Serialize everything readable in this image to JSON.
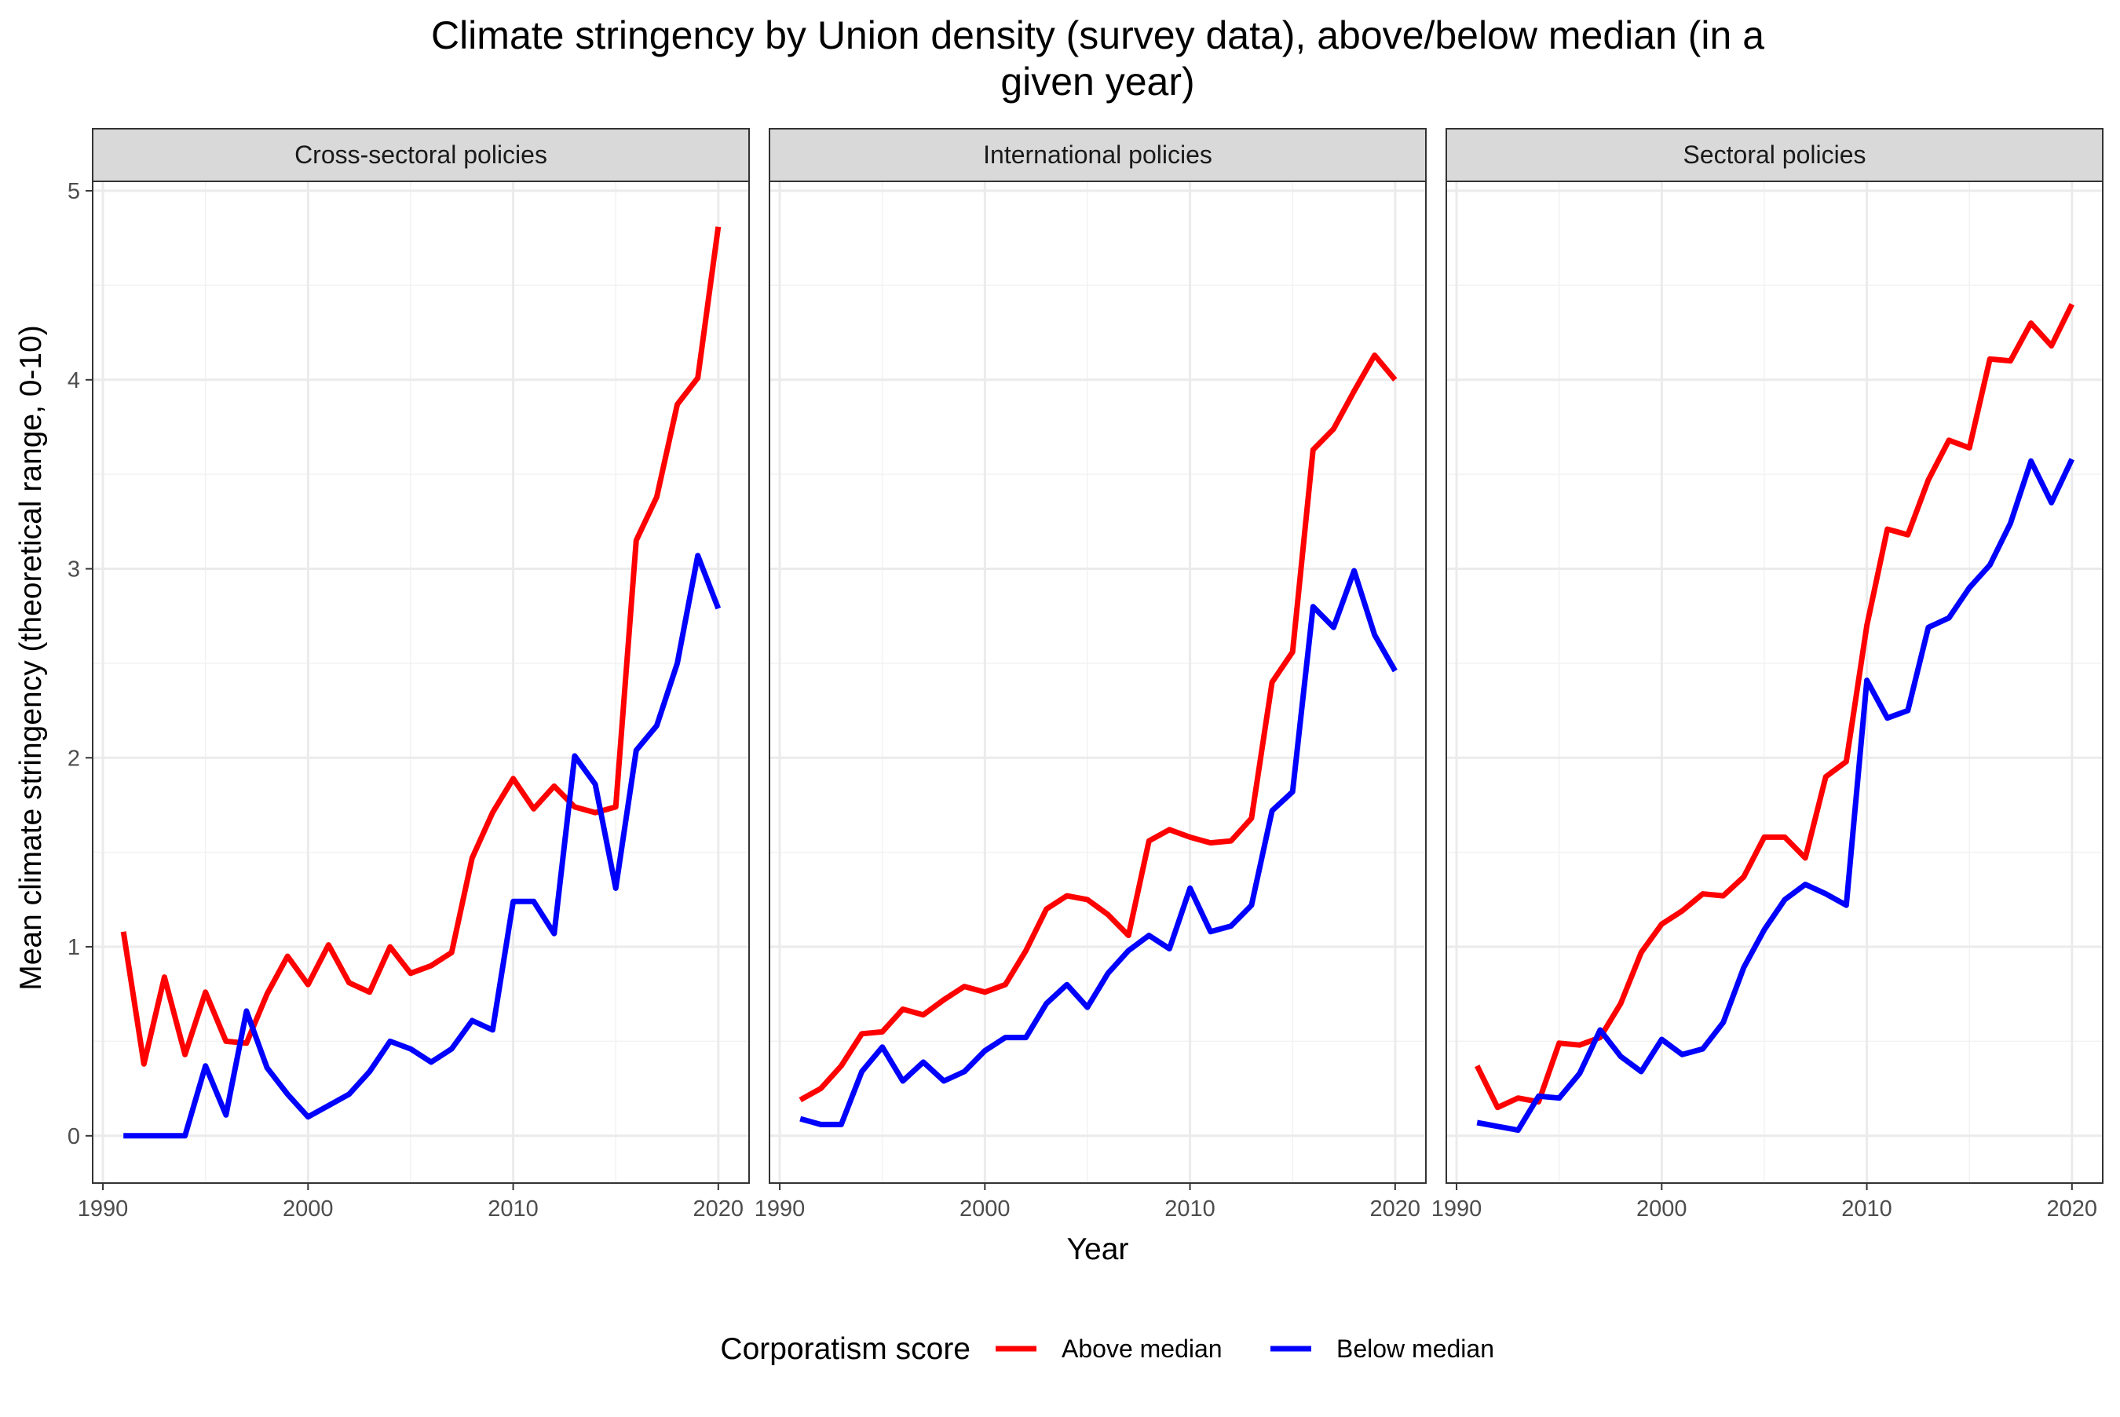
{
  "chart_data": {
    "type": "line",
    "title": "Climate stringency by Union density (survey data), above/below median (in a given year)",
    "title_lines": [
      "Climate stringency by Union density (survey data), above/below median (in a",
      "given year)"
    ],
    "xlabel": "Year",
    "ylabel": "Mean climate stringency (theoretical range, 0-10)",
    "xlim": [
      1989.5,
      2021.5
    ],
    "ylim": [
      -0.25,
      5.05
    ],
    "x_ticks": [
      1990,
      2000,
      2010,
      2020
    ],
    "y_ticks": [
      0,
      1,
      2,
      3,
      4,
      5
    ],
    "grid": true,
    "legend": {
      "title": "Corporatism score",
      "position": "bottom",
      "entries": [
        "Above median",
        "Below median"
      ]
    },
    "series_colors": {
      "Above median": "#ff0000",
      "Below median": "#0000ff"
    },
    "panel_strip_color": "#d9d9d9",
    "x": [
      1991,
      1992,
      1993,
      1994,
      1995,
      1996,
      1997,
      1998,
      1999,
      2000,
      2001,
      2002,
      2003,
      2004,
      2005,
      2006,
      2007,
      2008,
      2009,
      2010,
      2011,
      2012,
      2013,
      2014,
      2015,
      2016,
      2017,
      2018,
      2019,
      2020
    ],
    "panels": [
      {
        "name": "Cross-sectoral policies",
        "series": [
          {
            "name": "Above median",
            "values": [
              1.08,
              0.38,
              0.84,
              0.43,
              0.76,
              0.5,
              0.49,
              0.75,
              0.95,
              0.8,
              1.01,
              0.81,
              0.76,
              1.0,
              0.86,
              0.9,
              0.97,
              1.47,
              1.71,
              1.89,
              1.73,
              1.85,
              1.74,
              1.71,
              1.74,
              3.15,
              3.38,
              3.87,
              4.01,
              4.81
            ]
          },
          {
            "name": "Below median",
            "values": [
              0.0,
              0.0,
              0.0,
              0.0,
              0.37,
              0.11,
              0.66,
              0.36,
              0.22,
              0.1,
              0.16,
              0.22,
              0.34,
              0.5,
              0.46,
              0.39,
              0.46,
              0.61,
              0.56,
              1.24,
              1.24,
              1.07,
              2.01,
              1.86,
              1.31,
              2.04,
              2.17,
              2.5,
              3.07,
              2.79
            ]
          }
        ]
      },
      {
        "name": "International policies",
        "series": [
          {
            "name": "Above median",
            "values": [
              0.19,
              0.25,
              0.37,
              0.54,
              0.55,
              0.67,
              0.64,
              0.72,
              0.79,
              0.76,
              0.8,
              0.98,
              1.2,
              1.27,
              1.25,
              1.17,
              1.06,
              1.56,
              1.62,
              1.58,
              1.55,
              1.56,
              1.68,
              2.4,
              2.56,
              3.63,
              3.74,
              3.94,
              4.13,
              4.0
            ]
          },
          {
            "name": "Below median",
            "values": [
              0.09,
              0.06,
              0.06,
              0.34,
              0.47,
              0.29,
              0.39,
              0.29,
              0.34,
              0.45,
              0.52,
              0.52,
              0.7,
              0.8,
              0.68,
              0.86,
              0.98,
              1.06,
              0.99,
              1.31,
              1.08,
              1.11,
              1.22,
              1.72,
              1.82,
              2.8,
              2.69,
              2.99,
              2.65,
              2.46
            ]
          }
        ]
      },
      {
        "name": "Sectoral policies",
        "series": [
          {
            "name": "Above median",
            "values": [
              0.37,
              0.15,
              0.2,
              0.18,
              0.49,
              0.48,
              0.52,
              0.7,
              0.97,
              1.12,
              1.19,
              1.28,
              1.27,
              1.37,
              1.58,
              1.58,
              1.47,
              1.9,
              1.98,
              2.7,
              3.21,
              3.18,
              3.47,
              3.68,
              3.64,
              4.11,
              4.1,
              4.3,
              4.18,
              4.4
            ]
          },
          {
            "name": "Below median",
            "values": [
              0.07,
              null,
              0.03,
              0.21,
              0.2,
              0.33,
              0.56,
              0.42,
              0.34,
              0.51,
              0.43,
              0.46,
              0.6,
              0.89,
              1.09,
              1.25,
              1.33,
              1.28,
              1.22,
              2.41,
              2.21,
              2.25,
              2.69,
              2.74,
              2.9,
              3.02,
              3.24,
              3.57,
              3.35,
              3.58
            ]
          }
        ]
      }
    ]
  }
}
